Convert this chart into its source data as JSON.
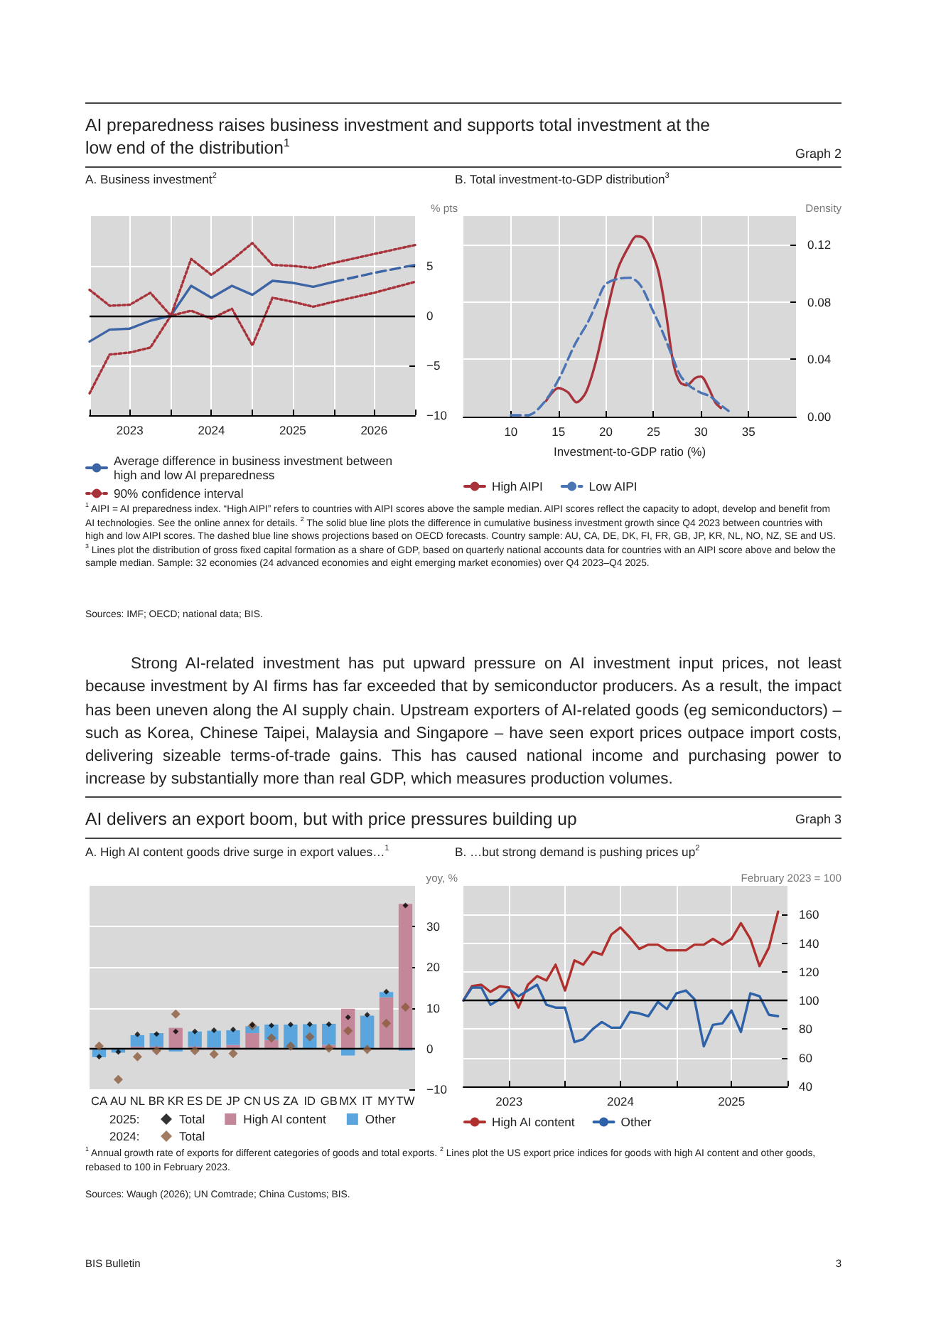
{
  "chart_data": [
    {
      "type": "line",
      "title": "A. Business investment$^{2}$",
      "ylabel": "% pts",
      "annotations": [
        "AI preparedness raises business investment and supports total investment at the low end of the distribution$^{1}$",
        "Graph 2",
        "$^{1}$  AIPI = AI preparedness index. “High AIPI” refers to countries with AIPI scores above the sample median. AIPI scores reflect the capacity to adopt, develop and benefit from AI technologies. See the online annex for details.   $^{2}$  The solid blue line plots the difference in cumulative business investment growth since Q4 2023 between countries with high and low AIPI scores. The dashed blue line shows projections based on OECD forecasts. Country sample: AU, CA, DE, DK, FI, FR, GB, JP, KR, NL, NO, NZ, SE and US.   $^{3}$  Lines plot the distribution of gross fixed capital formation as a share of GDP, based on quarterly national accounts data for countries with an AIPI score above and below the sample median. Sample: 32 economies (24 advanced economies and eight emerging market economies) over Q4 2023–Q4 2025.",
        "Sources: IMF; OECD; national data; BIS."
      ],
      "xlim": [
        "2023-01",
        "2027-01"
      ],
      "xticks": [
        {
          "value": "2023-01",
          "label": null
        },
        {
          "value": "2023-07",
          "label": "2023"
        },
        {
          "value": "2024-01",
          "label": null
        },
        {
          "value": "2024-07",
          "label": "2024"
        },
        {
          "value": "2025-01",
          "label": null
        },
        {
          "value": "2025-07",
          "label": "2025"
        },
        {
          "value": "2026-01",
          "label": null
        },
        {
          "value": "2026-07",
          "label": "2026"
        },
        {
          "value": "2027-01",
          "label": null
        }
      ],
      "ylim": [
        -10,
        10
      ],
      "yticks": [
        {
          "value": -10,
          "label": "−10"
        },
        {
          "value": -5,
          "label": "−5"
        },
        0,
        5
      ],
      "grid": true,
      "legend": "bottom",
      "ref_lines": [
        {
          "axis": "y",
          "value": 0,
          "color": "#000000"
        }
      ],
      "series": [
        {
          "name": "Average difference in business investment between high and low AI preparedness",
          "color": "#3d65a5",
          "line_style": "solid",
          "x": [
            "2023-01",
            "2023-04",
            "2023-07",
            "2023-10",
            "2024-01",
            "2024-04",
            "2024-07",
            "2024-10",
            "2025-01",
            "2025-04",
            "2025-07",
            "2025-10",
            "2026-01"
          ],
          "values": [
            -2.6,
            -1.4,
            -1.3,
            -0.5,
            0,
            3.0,
            1.8,
            3.0,
            2.1,
            3.5,
            3.3,
            2.9,
            3.4
          ]
        },
        {
          "color": "#3d65a5",
          "line_style": "dashed",
          "x": [
            "2026-01",
            "2026-07",
            "2027-01"
          ],
          "values": [
            3.4,
            4.3,
            5.1
          ]
        },
        {
          "name": "90% confidence interval",
          "color": "#a8323a",
          "line_style": "dotted",
          "x": [
            "2023-01",
            "2023-04",
            "2023-07",
            "2023-10",
            "2024-01",
            "2024-04",
            "2024-07",
            "2024-10",
            "2025-01",
            "2025-04",
            "2025-07",
            "2025-10",
            "2026-01",
            "2026-07",
            "2027-01"
          ],
          "values": [
            2.6,
            1.0,
            1.1,
            2.3,
            0,
            5.7,
            4.1,
            5.6,
            7.3,
            5.1,
            5.0,
            4.8,
            5.3,
            6.2,
            7.1
          ]
        },
        {
          "color": "#a8323a",
          "line_style": "dotted",
          "x": [
            "2023-01",
            "2023-04",
            "2023-07",
            "2023-10",
            "2024-01",
            "2024-04",
            "2024-07",
            "2024-10",
            "2025-01",
            "2025-04",
            "2025-07",
            "2025-10",
            "2026-01",
            "2026-07",
            "2027-01"
          ],
          "values": [
            -7.8,
            -3.9,
            -3.7,
            -3.2,
            0,
            0.5,
            -0.3,
            0.7,
            -3.0,
            1.8,
            1.4,
            0.9,
            1.4,
            2.3,
            3.4
          ]
        }
      ]
    },
    {
      "type": "line",
      "title": "B. Total investment-to-GDP distribution$^{3}$",
      "ylabel": "Density",
      "xlabel": "Investment-to-GDP ratio (%)",
      "annotations": [
        "Strong AI-related investment has put upward pressure on AI investment input prices, not least because investment by AI firms has far exceeded that by semiconductor producers. As a result, the impact has been uneven along the AI supply chain. Upstream exporters of AI-related goods (eg semiconductors) – such as Korea, Chinese Taipei, Malaysia and Singapore – have seen export prices outpace import costs, delivering sizeable terms-of-trade gains. This has caused national income and purchasing power to increase by substantially more than real GDP, which measures production volumes."
      ],
      "xlim": [
        5,
        40
      ],
      "xticks": [
        10,
        15,
        20,
        25,
        30,
        35
      ],
      "ylim": [
        0,
        0.14
      ],
      "yticks": [
        {
          "value": 0,
          "label": "0.00"
        },
        {
          "value": 0.04,
          "label": "0.04"
        },
        {
          "value": 0.08,
          "label": "0.08"
        },
        {
          "value": 0.12,
          "label": "0.12"
        }
      ],
      "grid": true,
      "legend": "bottom",
      "series": [
        {
          "name": "High AIPI",
          "color": "#a8323a",
          "line_style": "solid",
          "x": [
            13.7,
            15.0,
            16.0,
            16.9,
            17.9,
            19.0,
            20.2,
            21.3,
            22.5,
            23.2,
            23.9,
            24.5,
            25.5,
            26.3,
            27.1,
            27.8,
            28.5,
            29.4,
            30.0,
            30.8,
            31.5,
            32.1
          ],
          "values": [
            0.011,
            0.02,
            0.017,
            0.01,
            0.017,
            0.04,
            0.076,
            0.104,
            0.12,
            0.126,
            0.125,
            0.12,
            0.102,
            0.073,
            0.037,
            0.024,
            0.022,
            0.027,
            0.028,
            0.02,
            0.01,
            0.006
          ]
        },
        {
          "name": "Low AIPI",
          "color": "#4a74b4",
          "line_style": "dashed",
          "x": [
            10.0,
            11.8,
            13.5,
            15.1,
            16.7,
            18.1,
            19.0,
            19.9,
            21.1,
            22.5,
            23.6,
            24.8,
            25.9,
            27.1,
            27.8,
            28.7,
            29.9,
            31.0,
            31.9,
            32.9
          ],
          "values": [
            0.001,
            0.001,
            0.01,
            0.027,
            0.05,
            0.066,
            0.079,
            0.092,
            0.096,
            0.097,
            0.092,
            0.076,
            0.06,
            0.04,
            0.029,
            0.022,
            0.017,
            0.014,
            0.009,
            0.004
          ]
        }
      ]
    },
    {
      "type": "bar",
      "title": "A.  High AI content goods drive surge in export values…$^{1}$",
      "ylabel": "yoy, %",
      "stacked": true,
      "annotations": [
        "AI delivers an export boom, but with price pressures building up",
        "Graph 3",
        "2025:",
        "2024:",
        "$^{1}$  Annual growth rate of exports for different categories of goods and total exports.   $^{2}$  Lines plot the US export price indices for goods with high AI content and other goods, rebased to 100 in February 2023.",
        "Sources: Waugh (2026); UN Comtrade; China Customs; BIS."
      ],
      "categories": [
        "CA",
        "AU",
        "NL",
        "BR",
        "KR",
        "ES",
        "DE",
        "JP",
        "CN",
        "US",
        "ZA",
        "ID",
        "GB",
        "MX",
        "IT",
        "MY",
        "TW"
      ],
      "ylim": [
        -10,
        40
      ],
      "yticks": [
        {
          "value": -10,
          "label": "−10"
        },
        0,
        10,
        20,
        30
      ],
      "grid": "y",
      "legend": "bottom",
      "ref_lines": [
        {
          "axis": "y",
          "value": 0,
          "color": "#000000"
        }
      ],
      "series": [
        {
          "name": "High AI content",
          "color": "#c4879a",
          "values": [
            0,
            0,
            0.5,
            0.5,
            5.1,
            0.5,
            0.3,
            0.9,
            3.8,
            2.1,
            0,
            0,
            0.9,
            9.8,
            0,
            12.6,
            35.6
          ]
        },
        {
          "name": "Other",
          "color": "#5aa5dd",
          "values": [
            -2.1,
            -1.0,
            2.8,
            3.3,
            -0.7,
            3.7,
            4.1,
            3.6,
            1.7,
            3.8,
            5.9,
            6.0,
            5.2,
            -1.7,
            8.1,
            1.3,
            -0.5
          ]
        },
        {
          "name": "Total",
          "type": "scatter",
          "marker": "diamond",
          "color": "#000000",
          "x": [
            "CA",
            "AU",
            "NL",
            "BR",
            "KR",
            "ES",
            "DE",
            "JP",
            "CN",
            "US",
            "ZA",
            "ID",
            "GB",
            "MX",
            "IT",
            "MY",
            "TW"
          ],
          "values": [
            -2.0,
            -0.8,
            3.5,
            3.6,
            4.2,
            4.2,
            4.5,
            4.7,
            5.8,
            5.7,
            5.9,
            6.0,
            6.0,
            7.7,
            8.3,
            14.0,
            35.2
          ]
        },
        {
          "name": "Total",
          "type": "scatter",
          "marker": "diamond",
          "color": "#8b5a3c",
          "x": [
            "CA",
            "AU",
            "NL",
            "BR",
            "KR",
            "ES",
            "DE",
            "JP",
            "CN",
            "US",
            "ZA",
            "ID",
            "GB",
            "MX",
            "IT",
            "MY",
            "TW"
          ],
          "values": [
            0.6,
            -7.6,
            -2.0,
            -0.5,
            8.5,
            -0.5,
            -1.4,
            -1.2,
            5.6,
            2.6,
            0.6,
            2.9,
            0.1,
            4.4,
            -0.2,
            6.2,
            10.2
          ]
        }
      ]
    },
    {
      "type": "line",
      "title": "B. …but strong demand is pushing prices up$^{2}$",
      "ylabel": "February 2023 = 100",
      "annotations": [
        "BIS Bulletin",
        "3"
      ],
      "xlim": [
        "2023-02",
        "2026-01"
      ],
      "xticks": [
        {
          "value": "2023-07",
          "label": "2023"
        },
        {
          "value": "2024-01",
          "label": null
        },
        {
          "value": "2024-07",
          "label": "2024"
        },
        {
          "value": "2025-01",
          "label": null
        },
        {
          "value": "2025-07",
          "label": "2025"
        },
        {
          "value": "2026-01",
          "label": null
        }
      ],
      "ylim": [
        40,
        180
      ],
      "yticks": [
        40,
        60,
        80,
        100,
        120,
        140,
        160
      ],
      "grid": true,
      "legend": "bottom",
      "ref_lines": [
        {
          "axis": "y",
          "value": 100,
          "color": "#000000"
        }
      ],
      "x": [
        "2023-02",
        "2023-03",
        "2023-04",
        "2023-05",
        "2023-06",
        "2023-07",
        "2023-08",
        "2023-09",
        "2023-10",
        "2023-11",
        "2023-12",
        "2024-01",
        "2024-02",
        "2024-03",
        "2024-04",
        "2024-05",
        "2024-06",
        "2024-07",
        "2024-08",
        "2024-09",
        "2024-10",
        "2024-11",
        "2024-12",
        "2025-01",
        "2025-02",
        "2025-03",
        "2025-04",
        "2025-05",
        "2025-06",
        "2025-07",
        "2025-08",
        "2025-09",
        "2025-10",
        "2025-11",
        "2025-12"
      ],
      "series": [
        {
          "name": "High AI content",
          "color": "#b0302e",
          "values": [
            100,
            110,
            111,
            106,
            110,
            109,
            95,
            111,
            117,
            114,
            125,
            107,
            128,
            125,
            134,
            132,
            146,
            151,
            144,
            136,
            139,
            139,
            135,
            135,
            135,
            139,
            139,
            143,
            139,
            143,
            154,
            143,
            124,
            137,
            162
          ]
        },
        {
          "name": "Other",
          "color": "#2e62a8",
          "values": [
            100,
            109,
            109,
            97,
            101,
            108,
            103,
            107,
            111,
            97,
            95,
            95,
            71,
            73,
            80,
            85,
            81,
            81,
            92,
            91,
            89,
            99,
            94,
            105,
            107,
            101,
            68,
            83,
            84,
            93,
            78,
            105,
            103,
            90,
            89
          ]
        }
      ]
    }
  ]
}
